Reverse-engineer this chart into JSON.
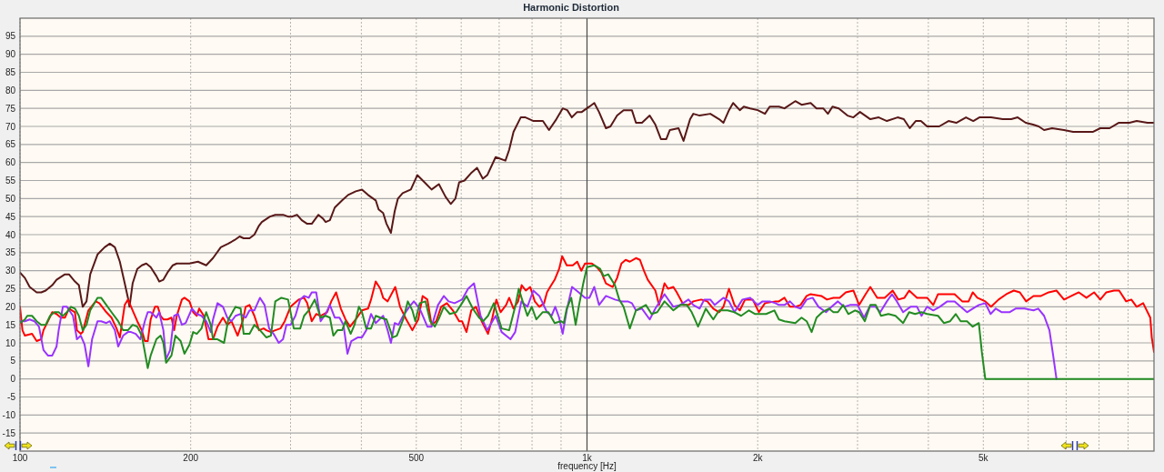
{
  "chart_data": {
    "type": "line",
    "title": "Harmonic Distortion",
    "xlabel": "frequency [Hz]",
    "log": "x",
    "xlim": [
      100,
      10000
    ],
    "ylim": [
      -20,
      100
    ],
    "xticks": [
      100,
      200,
      {
        "value": 300,
        "label": null
      },
      {
        "value": 400,
        "label": null
      },
      500,
      {
        "value": 600,
        "label": null
      },
      {
        "value": 700,
        "label": null
      },
      {
        "value": 800,
        "label": null
      },
      {
        "value": 900,
        "label": null
      },
      {
        "value": 1000,
        "label": "1k"
      },
      {
        "value": 2000,
        "label": "2k"
      },
      {
        "value": 3000,
        "label": null
      },
      {
        "value": 4000,
        "label": null
      },
      {
        "value": 5000,
        "label": "5k"
      },
      {
        "value": 6000,
        "label": null
      },
      {
        "value": 7000,
        "label": null
      },
      {
        "value": 8000,
        "label": null
      },
      {
        "value": 9000,
        "label": null
      }
    ],
    "yticks": [
      -15,
      -10,
      -5,
      0,
      5,
      10,
      15,
      20,
      25,
      30,
      35,
      40,
      45,
      50,
      55,
      60,
      65,
      70,
      75,
      80,
      85,
      90,
      95
    ],
    "grid": true,
    "line_style": "solid",
    "ref_lines": [
      {
        "axis": "x",
        "value": 1000,
        "color": "#4a4a4a"
      }
    ],
    "series": [
      {
        "color": "#581818",
        "x": [
          100,
          102,
          104,
          107,
          109,
          111,
          114,
          116,
          120,
          122,
          125,
          127,
          129,
          131,
          133,
          137,
          141,
          144,
          147,
          150,
          153,
          155,
          156,
          158,
          161,
          164,
          167,
          170,
          174,
          176,
          179,
          182,
          186,
          189,
          193,
          199,
          206,
          213,
          219,
          226,
          233,
          239,
          244,
          248,
          254,
          259,
          264,
          267,
          276,
          282,
          291,
          297,
          302,
          308,
          314,
          321,
          327,
          336,
          342,
          346,
          352,
          359,
          370,
          379,
          391,
          401,
          411,
          424,
          429,
          437,
          443,
          451,
          458,
          464,
          473,
          489,
          502,
          517,
          532,
          548,
          563,
          575,
          586,
          595,
          608,
          624,
          640,
          655,
          667,
          690,
          718,
          729,
          742,
          764,
          779,
          805,
          836,
          857,
          883,
          906,
          923,
          940,
          961,
          979,
          1010,
          1030,
          1050,
          1080,
          1100,
          1130,
          1160,
          1200,
          1220,
          1250,
          1290,
          1320,
          1350,
          1380,
          1400,
          1450,
          1480,
          1520,
          1540,
          1580,
          1650,
          1710,
          1740,
          1780,
          1810,
          1860,
          1890,
          1940,
          2000,
          2060,
          2100,
          2180,
          2230,
          2330,
          2390,
          2480,
          2540,
          2610,
          2660,
          2710,
          2780,
          2880,
          2950,
          3030,
          3160,
          3270,
          3380,
          3530,
          3620,
          3710,
          3800,
          3880,
          3980,
          4180,
          4340,
          4480,
          4660,
          4800,
          4920,
          5160,
          5410,
          5600,
          5750,
          5940,
          6120,
          6260,
          6400,
          6610,
          6940,
          7200,
          7410,
          7810,
          8040,
          8350,
          8660,
          9050,
          9320,
          9740,
          10000
        ],
        "values": [
          29.5,
          28,
          25.5,
          24,
          24,
          24.5,
          26,
          27.5,
          29,
          29,
          27,
          26,
          20,
          21.5,
          29,
          34.5,
          36.5,
          37.5,
          36.5,
          32.5,
          26.5,
          22.5,
          20,
          26.5,
          30.5,
          31.5,
          32,
          31,
          28.5,
          27,
          27.5,
          29.5,
          31.5,
          32,
          32,
          32,
          32.5,
          31.5,
          33.5,
          36.5,
          37.5,
          38.5,
          39.5,
          39,
          39,
          40,
          42.5,
          43.5,
          45,
          45.5,
          45.5,
          45,
          45,
          45.5,
          44,
          43,
          43,
          45.5,
          44.5,
          43.5,
          44,
          47.5,
          49.5,
          51,
          52,
          52.5,
          51,
          49.5,
          47,
          46,
          43,
          40.5,
          46.5,
          50,
          51.5,
          52.5,
          56.5,
          54.5,
          52.5,
          54,
          50.5,
          48.5,
          50,
          54.5,
          55,
          57,
          58.5,
          55.5,
          56.5,
          61.5,
          60.5,
          63.5,
          68.5,
          72.5,
          72.5,
          71.5,
          71.5,
          69,
          72,
          75,
          74.5,
          72.5,
          74,
          74,
          75.5,
          76.5,
          74,
          69.5,
          70,
          73,
          74.5,
          74.5,
          71,
          71,
          73,
          70.5,
          66.5,
          66.5,
          69,
          69.5,
          66,
          72,
          73.5,
          73,
          73.5,
          72,
          71,
          74.5,
          76.5,
          74.5,
          75.5,
          75,
          74.5,
          73.5,
          75.5,
          75.5,
          75,
          77,
          76,
          76.5,
          75,
          75,
          73.5,
          75.5,
          75,
          73,
          72.5,
          74,
          72,
          72.5,
          71.5,
          72.5,
          72,
          69.5,
          71.5,
          71.5,
          70,
          70,
          71.5,
          71,
          72.5,
          71.5,
          72.5,
          72.5,
          72,
          72,
          72.5,
          71,
          70.5,
          70,
          69,
          69.5,
          69,
          68.5,
          68.5,
          68.5,
          69.5,
          69.5,
          71,
          71,
          71.5,
          71,
          71
        ]
      },
      {
        "color": "#ff0000",
        "x": [
          100,
          101,
          102,
          105,
          107,
          109,
          110,
          112,
          114,
          116,
          118,
          120,
          122,
          125,
          126,
          128,
          129,
          132,
          136,
          138,
          142,
          145,
          148,
          150,
          152,
          153,
          155,
          158,
          161,
          164,
          166,
          168,
          170,
          173,
          175,
          177,
          179,
          182,
          185,
          187,
          189,
          193,
          195,
          199,
          202,
          205,
          207,
          211,
          215,
          219,
          223,
          228,
          232,
          236,
          242,
          247,
          250,
          254,
          259,
          264,
          269,
          272,
          277,
          282,
          288,
          293,
          300,
          310,
          317,
          321,
          327,
          333,
          339,
          348,
          354,
          361,
          368,
          375,
          382,
          391,
          401,
          411,
          416,
          424,
          432,
          437,
          445,
          459,
          468,
          480,
          492,
          504,
          513,
          523,
          532,
          542,
          553,
          566,
          580,
          595,
          602,
          613,
          625,
          637,
          652,
          669,
          681,
          692,
          704,
          720,
          729,
          742,
          756,
          767,
          780,
          794,
          809,
          824,
          840,
          850,
          861,
          877,
          893,
          904,
          921,
          944,
          961,
          977,
          992,
          1020,
          1040,
          1060,
          1080,
          1110,
          1130,
          1150,
          1170,
          1190,
          1220,
          1240,
          1260,
          1280,
          1320,
          1340,
          1370,
          1390,
          1420,
          1440,
          1480,
          1510,
          1540,
          1590,
          1630,
          1670,
          1710,
          1740,
          1780,
          1820,
          1860,
          1900,
          1960,
          2010,
          2060,
          2150,
          2180,
          2230,
          2280,
          2330,
          2380,
          2440,
          2480,
          2590,
          2650,
          2720,
          2790,
          2860,
          2950,
          3020,
          3100,
          3160,
          3250,
          3350,
          3460,
          3540,
          3630,
          3700,
          3820,
          3980,
          4080,
          4160,
          4450,
          4590,
          4710,
          4790,
          4880,
          5040,
          5160,
          5320,
          5490,
          5660,
          5800,
          5950,
          6130,
          6320,
          6520,
          6730,
          6940,
          7150,
          7370,
          7600,
          7840,
          8040,
          8240,
          8500,
          8680,
          8930,
          9120,
          9320,
          9570,
          9850,
          9910,
          10000
        ],
        "values": [
          20,
          13.5,
          12,
          12.5,
          10.5,
          11,
          13.5,
          16,
          18.5,
          18,
          17,
          17,
          19.5,
          18.5,
          13.5,
          12.5,
          13,
          19,
          21.5,
          21,
          18.5,
          17,
          14,
          11.5,
          17.5,
          20.5,
          22,
          19,
          16,
          13.5,
          10.5,
          10.5,
          16.5,
          20,
          20,
          17.5,
          16.5,
          16.5,
          17,
          13.5,
          17.5,
          22,
          22.5,
          21.5,
          18.5,
          17.5,
          19.5,
          17.5,
          11,
          11,
          14.5,
          17,
          15,
          16,
          12,
          16,
          20,
          20.5,
          17.5,
          13.5,
          14,
          13.5,
          13,
          13.5,
          14,
          16,
          20,
          22,
          22.5,
          21,
          16,
          18,
          17.5,
          18.5,
          21.5,
          24,
          19.5,
          16.5,
          14.5,
          16.5,
          19,
          19.5,
          22,
          27,
          25,
          22.5,
          21.5,
          25.5,
          20,
          16.5,
          13.5,
          16.5,
          23,
          22,
          15,
          16,
          20,
          21,
          19,
          16,
          16,
          13,
          19,
          20,
          16,
          12.5,
          17,
          22,
          18.5,
          20.5,
          22.5,
          19.5,
          21.5,
          26,
          24.5,
          25.5,
          21.5,
          20,
          21,
          24,
          25.5,
          27.5,
          30.5,
          34,
          31.5,
          31.5,
          32.5,
          30,
          32,
          32,
          31,
          29.5,
          26.5,
          25.5,
          28,
          32,
          33,
          32.5,
          33.5,
          33,
          30,
          27.5,
          24.5,
          20.5,
          26.5,
          25,
          25.5,
          24,
          20.5,
          20.5,
          21.5,
          22,
          21.5,
          19.5,
          18.5,
          20,
          25,
          20.5,
          19,
          22,
          22,
          18.5,
          21,
          21.5,
          21.5,
          22.5,
          20,
          20,
          20.5,
          23,
          23.5,
          23,
          22,
          22.5,
          22.5,
          24,
          24.5,
          20.5,
          23.5,
          25.5,
          22.5,
          22.5,
          24.5,
          22,
          22.5,
          24.5,
          22.5,
          22.5,
          20.5,
          23.5,
          23.5,
          21.5,
          21.5,
          24,
          22.5,
          21.5,
          20,
          22,
          23.5,
          24.5,
          24,
          21.5,
          23,
          23,
          24,
          24.5,
          22,
          23,
          24,
          22.5,
          24,
          22,
          24,
          24.5,
          24.5,
          21.5,
          22,
          20,
          21,
          17,
          11.5,
          7.5
        ]
      },
      {
        "color": "#9933ff",
        "x": [
          100,
          102,
          104,
          106,
          108,
          110,
          112,
          114,
          116,
          117,
          119,
          121,
          124,
          126,
          128,
          130,
          132,
          134,
          137,
          139,
          142,
          144,
          147,
          149,
          152,
          155,
          157,
          160,
          163,
          166,
          168,
          170,
          174,
          176,
          179,
          181,
          184,
          187,
          190,
          193,
          196,
          201,
          205,
          209,
          213,
          217,
          219,
          223,
          228,
          232,
          236,
          240,
          245,
          250,
          254,
          259,
          265,
          270,
          275,
          280,
          286,
          291,
          295,
          300,
          306,
          312,
          317,
          323,
          327,
          333,
          339,
          346,
          352,
          359,
          366,
          372,
          378,
          384,
          394,
          401,
          408,
          416,
          424,
          437,
          445,
          451,
          458,
          465,
          474,
          486,
          495,
          507,
          523,
          532,
          546,
          559,
          570,
          584,
          602,
          617,
          632,
          649,
          667,
          690,
          707,
          733,
          747,
          766,
          785,
          804,
          824,
          850,
          866,
          879,
          893,
          906,
          921,
          941,
          967,
          992,
          1010,
          1030,
          1050,
          1080,
          1120,
          1150,
          1180,
          1200,
          1220,
          1250,
          1290,
          1320,
          1370,
          1420,
          1460,
          1510,
          1540,
          1580,
          1610,
          1650,
          1680,
          1740,
          1780,
          1820,
          1880,
          1940,
          2000,
          2040,
          2100,
          2150,
          2180,
          2230,
          2280,
          2330,
          2380,
          2440,
          2500,
          2560,
          2640,
          2700,
          2770,
          2840,
          2910,
          3000,
          3080,
          3150,
          3230,
          3290,
          3380,
          3450,
          3520,
          3610,
          3720,
          3820,
          3890,
          3980,
          4080,
          4190,
          4320,
          4450,
          4560,
          4680,
          4790,
          4910,
          5040,
          5150,
          5260,
          5390,
          5560,
          5700,
          5910,
          6130,
          6250,
          6400,
          6540,
          6640,
          6730
        ],
        "values": [
          16,
          16,
          16.5,
          16,
          14.5,
          8,
          6.5,
          6.5,
          9,
          13.5,
          20,
          20,
          17.5,
          11,
          12,
          9.5,
          3.5,
          11,
          16,
          16,
          15.5,
          16,
          13.5,
          9,
          12,
          13,
          13,
          12.5,
          11,
          16,
          18.5,
          18.5,
          17,
          18.5,
          13.5,
          5.5,
          8,
          17.5,
          18,
          15,
          15.5,
          19.5,
          18,
          17.5,
          16,
          13,
          16.5,
          21,
          20,
          17,
          16,
          17.5,
          18,
          17,
          19,
          19,
          22.5,
          20.5,
          14,
          12.5,
          10,
          11,
          15,
          15,
          17.5,
          22,
          23,
          22.5,
          24,
          24,
          16,
          18,
          20.5,
          17,
          17,
          15,
          7,
          10.5,
          11.5,
          11.5,
          13.5,
          18,
          15.5,
          17.5,
          13.5,
          10,
          15.5,
          15,
          17.5,
          20,
          21.5,
          19.5,
          14.5,
          14.5,
          20.5,
          23,
          21.5,
          21,
          22,
          25,
          26.5,
          17.5,
          13.5,
          17.5,
          13,
          11,
          13,
          21.5,
          20,
          24.5,
          23,
          18.5,
          17.5,
          20,
          17,
          12.5,
          19,
          25.5,
          24,
          22.5,
          22.5,
          25.5,
          20.5,
          23,
          22,
          21.5,
          21.5,
          21,
          19,
          19.5,
          16.5,
          19.5,
          23.5,
          20,
          20.5,
          22,
          20.5,
          19.5,
          22,
          22,
          20.5,
          22.5,
          21.5,
          18.5,
          22,
          22.5,
          20.5,
          21.5,
          21.5,
          21,
          20.5,
          20.5,
          21.5,
          20,
          19.5,
          22,
          22.5,
          20,
          18.5,
          20,
          21.5,
          20,
          20.5,
          20.5,
          17,
          20,
          20,
          18.5,
          21.5,
          23.5,
          21.5,
          18.5,
          20,
          20,
          17.5,
          20,
          19,
          20,
          21.5,
          21.5,
          20,
          18.5,
          19.5,
          20.5,
          21,
          18,
          19.5,
          18.5,
          18.5,
          19.5,
          19.5,
          19,
          19.5,
          17.5,
          13.5,
          6.5,
          0
        ]
      },
      {
        "color": "#228b22",
        "x": [
          100,
          102,
          103,
          105,
          107,
          109,
          111,
          113,
          115,
          117,
          119,
          121,
          123,
          125,
          127,
          129,
          131,
          133,
          137,
          139,
          142,
          145,
          149,
          152,
          155,
          158,
          161,
          164,
          166,
          168,
          170,
          174,
          177,
          179,
          181,
          185,
          188,
          192,
          195,
          199,
          202,
          205,
          209,
          213,
          217,
          219,
          223,
          229,
          233,
          240,
          245,
          248,
          254,
          259,
          265,
          272,
          277,
          282,
          289,
          297,
          304,
          312,
          317,
          323,
          331,
          339,
          346,
          352,
          357,
          363,
          370,
          375,
          383,
          389,
          396,
          401,
          408,
          416,
          424,
          432,
          443,
          451,
          454,
          462,
          474,
          483,
          492,
          498,
          507,
          519,
          529,
          539,
          549,
          559,
          573,
          588,
          602,
          613,
          629,
          645,
          656,
          669,
          685,
          707,
          729,
          747,
          758,
          770,
          785,
          799,
          814,
          835,
          855,
          877,
          899,
          910,
          921,
          938,
          955,
          967,
          985,
          1000,
          1030,
          1055,
          1070,
          1090,
          1120,
          1140,
          1160,
          1190,
          1220,
          1270,
          1300,
          1330,
          1370,
          1420,
          1460,
          1500,
          1530,
          1570,
          1620,
          1670,
          1710,
          1770,
          1820,
          1870,
          1930,
          1980,
          2040,
          2070,
          2140,
          2180,
          2230,
          2330,
          2390,
          2440,
          2490,
          2540,
          2600,
          2670,
          2720,
          2770,
          2830,
          2890,
          2970,
          3020,
          3090,
          3160,
          3230,
          3300,
          3400,
          3500,
          3610,
          3700,
          3790,
          3890,
          3980,
          4160,
          4260,
          4370,
          4470,
          4560,
          4680,
          4790,
          4910,
          4970,
          5040,
          10000
        ],
        "values": [
          15.5,
          16.5,
          17.5,
          17.5,
          16,
          15,
          15,
          17.5,
          18.5,
          18.5,
          17.5,
          18.5,
          20,
          19.5,
          17.5,
          13.5,
          15,
          19,
          22.5,
          22.5,
          20.5,
          18.5,
          16,
          13.5,
          13.5,
          15,
          14.5,
          12,
          7.5,
          3,
          6.5,
          11,
          12,
          10,
          4.5,
          6.5,
          12,
          10.5,
          7,
          9.5,
          13,
          12.5,
          14,
          18.5,
          15,
          11,
          11,
          10,
          16.5,
          20,
          19.5,
          12.5,
          12.5,
          15,
          13.5,
          11.5,
          12,
          21.5,
          22.5,
          22,
          14,
          14,
          17.5,
          19,
          22,
          17,
          17.5,
          17,
          12,
          13.5,
          13.5,
          16,
          12.5,
          15,
          20,
          18.5,
          14,
          14,
          17.5,
          17,
          16.5,
          13,
          11.5,
          12,
          16.5,
          21.5,
          19,
          16,
          21,
          21.5,
          16,
          14.5,
          17,
          20,
          18,
          18.5,
          21,
          23,
          19.5,
          17,
          16,
          17.5,
          21,
          14,
          13.5,
          20,
          25,
          21.5,
          17.5,
          20,
          16.5,
          18.5,
          18.5,
          15.5,
          16,
          15.5,
          19.5,
          22.5,
          15,
          20,
          26.5,
          31,
          31.5,
          30.5,
          28.5,
          29,
          26,
          22,
          20,
          14,
          19,
          20.5,
          18,
          18.5,
          21.5,
          19,
          20.5,
          20.5,
          18.5,
          14.5,
          19.5,
          16.5,
          19,
          19,
          18.5,
          17.5,
          19,
          18,
          18,
          18,
          19,
          16.5,
          16,
          15.5,
          17,
          16,
          13,
          17,
          18.5,
          19.5,
          18.5,
          18.5,
          20.5,
          18,
          19,
          18.5,
          16,
          20.5,
          20.5,
          17.5,
          18,
          17.5,
          15.5,
          18.5,
          18,
          18.5,
          18,
          17.5,
          15.5,
          16,
          18,
          16,
          16,
          14.5,
          15.5,
          7.5,
          0,
          0
        ]
      }
    ]
  }
}
